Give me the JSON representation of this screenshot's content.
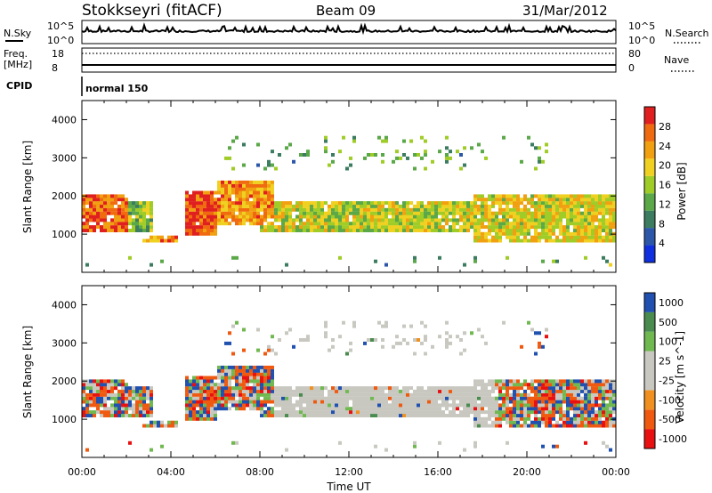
{
  "header": {
    "station": "Stokkseyri (fitACF)",
    "beam": "Beam 09",
    "date": "31/Mar/2012"
  },
  "strip_labels": {
    "nsky": "N.Sky",
    "nsky_top": "10^5",
    "nsky_bot": "10^0",
    "nsearch": "N.Search",
    "nsearch_top": "10^5",
    "nsearch_bot": "10^0",
    "freq": "Freq.",
    "freq_unit": "[MHz]",
    "freq_top": "18",
    "freq_bot": "8",
    "nave": "Nave",
    "nave_top": "80",
    "nave_bot": "0",
    "cpid": "CPID",
    "cpid_value": "normal 150"
  },
  "colors": {
    "power_scale": [
      "#1030e0",
      "#2c56a8",
      "#3c7c60",
      "#5aa848",
      "#a0cc28",
      "#f0d020",
      "#f0a010",
      "#f06a10",
      "#e02020"
    ],
    "velocity_scale": [
      "#e81010",
      "#f05a10",
      "#f09020",
      "#c8c8c0",
      "#c8c8c0",
      "#70b850",
      "#4a8c50",
      "#2050b0"
    ]
  },
  "chart_data": [
    {
      "type": "heatmap",
      "name": "power",
      "ylabel": "Slant Range [km]",
      "xlabel": "",
      "xlim": [
        "00:00",
        "00:00"
      ],
      "ylim": [
        0,
        4500
      ],
      "yticks": [
        "1000",
        "2000",
        "3000",
        "4000"
      ],
      "colorbar_label": "Power [dB]",
      "colorbar_ticks": [
        "4",
        "8",
        "12",
        "16",
        "20",
        "24",
        "28"
      ],
      "echo_bands": [
        {
          "t0": 0.0,
          "t1": 2.0,
          "r0": 1000,
          "r1": 2000,
          "level": 0.85
        },
        {
          "t0": 2.0,
          "t1": 3.2,
          "r0": 1000,
          "r1": 1800,
          "level": 0.45
        },
        {
          "t0": 2.6,
          "t1": 4.3,
          "r0": 780,
          "r1": 930,
          "level": 0.75
        },
        {
          "t0": 4.6,
          "t1": 6.0,
          "r0": 900,
          "r1": 2100,
          "level": 0.9
        },
        {
          "t0": 6.0,
          "t1": 8.6,
          "r0": 1200,
          "r1": 2400,
          "level": 0.75
        },
        {
          "t0": 8.0,
          "t1": 17.5,
          "r0": 1050,
          "r1": 1850,
          "level": 0.55
        },
        {
          "t0": 17.5,
          "t1": 24.0,
          "r0": 700,
          "r1": 2000,
          "level": 0.6
        }
      ]
    },
    {
      "type": "heatmap",
      "name": "velocity",
      "ylabel": "Slant Range [km]",
      "xlabel": "Time UT",
      "xlim": [
        "00:00",
        "00:00"
      ],
      "ylim": [
        0,
        4500
      ],
      "yticks": [
        "1000",
        "2000",
        "3000",
        "4000"
      ],
      "xticks": [
        "00:00",
        "04:00",
        "08:00",
        "12:00",
        "16:00",
        "20:00",
        "00:00"
      ],
      "colorbar_label": "Velocity [m s^-1]",
      "colorbar_ticks": [
        "-1000",
        "-500",
        "-100",
        "-25",
        "25",
        "100",
        "500",
        "1000"
      ]
    }
  ]
}
